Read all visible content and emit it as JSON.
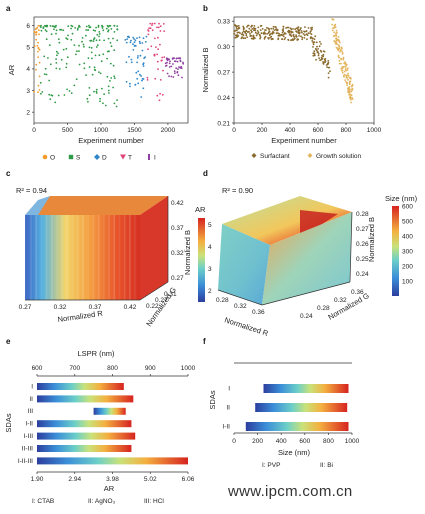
{
  "watermark": "www.ipcm.com.cn",
  "chart_data": [
    {
      "panel": "a",
      "type": "scatter",
      "xlabel": "Experiment number",
      "ylabel": "AR",
      "xlim": [
        0,
        2300
      ],
      "ylim": [
        1.5,
        6.4
      ],
      "xticks": [
        0,
        500,
        1000,
        1500,
        2000
      ],
      "yticks": [
        2,
        3,
        4,
        5,
        6
      ],
      "legend_position": "bottom",
      "series": [
        {
          "name": "O",
          "color": "#f39c2c",
          "x_range": [
            0,
            90
          ],
          "y_range": [
            2.0,
            6.0
          ]
        },
        {
          "name": "S",
          "color": "#2e9a45",
          "x_range": [
            100,
            1250
          ],
          "y_range": [
            1.8,
            6.0
          ]
        },
        {
          "name": "D",
          "color": "#2f86c9",
          "x_range": [
            1350,
            1680
          ],
          "y_range": [
            2.2,
            5.5
          ]
        },
        {
          "name": "T",
          "color": "#e0457b",
          "x_range": [
            1690,
            1950
          ],
          "y_range": [
            2.0,
            6.1
          ]
        },
        {
          "name": "I",
          "color": "#8e3fa0",
          "x_range": [
            1950,
            2230
          ],
          "y_range": [
            3.5,
            4.5
          ]
        }
      ]
    },
    {
      "panel": "b",
      "type": "scatter",
      "xlabel": "Experiment number",
      "ylabel": "Normalized B",
      "xlim": [
        0,
        1000
      ],
      "ylim": [
        0.21,
        0.335
      ],
      "xticks": [
        0,
        200,
        400,
        600,
        800,
        1000
      ],
      "yticks": [
        0.21,
        0.24,
        0.27,
        0.3,
        0.33
      ],
      "legend_position": "bottom",
      "series": [
        {
          "name": "Surfactant",
          "color": "#8a6a2c",
          "x_range": [
            0,
            690
          ],
          "y_range": [
            0.27,
            0.33
          ]
        },
        {
          "name": "Growth solution",
          "color": "#e3b55e",
          "x_range": [
            700,
            850
          ],
          "y_range": [
            0.22,
            0.33
          ]
        }
      ]
    },
    {
      "panel": "c",
      "type": "heatmap",
      "annotation": "R² = 0.94",
      "xlabel": "Normalized R",
      "ylabel": "Normalized G",
      "zlabel": "Normalized B",
      "x_ticks": [
        0.27,
        0.32,
        0.37,
        0.42
      ],
      "y_ticks": [
        0.22,
        0.27,
        0.31
      ],
      "z_ticks": [
        0.27,
        0.32,
        0.37,
        0.42
      ],
      "colorbar": {
        "label": "AR",
        "range": [
          1.5,
          5.3
        ],
        "ticks": [
          2,
          3,
          4,
          5
        ]
      }
    },
    {
      "panel": "d",
      "type": "heatmap",
      "annotation": "R² = 0.90",
      "xlabel": "Normalized R",
      "ylabel": "Normalized G",
      "zlabel": "Normalized B",
      "x_ticks": [
        0.28,
        0.32,
        0.36
      ],
      "y_ticks": [
        0.24,
        0.28,
        0.32,
        0.36
      ],
      "z_ticks": [
        0.24,
        0.25,
        0.26,
        0.27,
        0.28
      ],
      "colorbar": {
        "label": "Size (nm)",
        "range": [
          0,
          600
        ],
        "ticks": [
          100,
          200,
          300,
          400,
          500,
          600
        ]
      }
    },
    {
      "panel": "e",
      "type": "bar",
      "ylabel": "SDAs",
      "top_axis": {
        "label": "LSPR (nm)",
        "ticks": [
          600,
          700,
          800,
          900,
          1000
        ],
        "range": [
          600,
          1000
        ]
      },
      "bottom_axis": {
        "label": "AR",
        "ticks": [
          "1.90",
          "2.94",
          "3.98",
          "5.02",
          "6.06"
        ],
        "range": [
          1.9,
          6.06
        ]
      },
      "categories": [
        "I",
        "II",
        "III",
        "I-II",
        "I-III",
        "II-III",
        "I-II-III"
      ],
      "ranges_lspr": [
        [
          600,
          830
        ],
        [
          600,
          855
        ],
        [
          750,
          835
        ],
        [
          600,
          850
        ],
        [
          600,
          860
        ],
        [
          600,
          850
        ],
        [
          600,
          1000
        ]
      ],
      "legend": [
        "I: CTAB",
        "II: AgNO₃",
        "III: HCl"
      ]
    },
    {
      "panel": "f",
      "type": "bar",
      "ylabel": "SDAs",
      "xlabel": "Size (nm)",
      "xticks": [
        0,
        200,
        400,
        600,
        800,
        1000
      ],
      "xlim": [
        0,
        1000
      ],
      "categories": [
        "I",
        "II",
        "I-II"
      ],
      "ranges": [
        [
          250,
          970
        ],
        [
          180,
          960
        ],
        [
          100,
          970
        ]
      ],
      "legend": [
        "I: PVP",
        "II: Bi"
      ]
    }
  ]
}
